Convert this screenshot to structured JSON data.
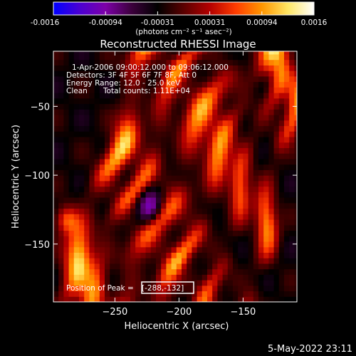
{
  "colorbar": {
    "ticks": [
      "-0.0016",
      "-0.00094",
      "-0.00031",
      "0.00031",
      "0.00094",
      "0.0016"
    ],
    "unit_label": "(photons cm⁻² s⁻¹ asec⁻²)",
    "colors": [
      "#0000ff",
      "#4b00d2",
      "#7d00a8",
      "#3c003c",
      "#000000",
      "#5a0000",
      "#b40000",
      "#ff3c00",
      "#ff9600",
      "#ffe664",
      "#ffffff"
    ]
  },
  "chart_data": {
    "type": "heatmap",
    "title": "Reconstructed RHESSI Image",
    "xlabel": "Heliocentric X (arcsec)",
    "ylabel": "Heliocentric Y (arcsec)",
    "xlim": [
      -298,
      -108
    ],
    "ylim": [
      -192,
      -10
    ],
    "xticks": [
      -250,
      -200,
      -150
    ],
    "yticks": [
      -50,
      -100,
      -150
    ],
    "value_range": [
      -0.0016,
      0.0016
    ],
    "annotations": {
      "time_range": "1-Apr-2006 09:00:12.000 to 09:06:12.000",
      "detectors": "Detectors: 3F 4F 5F 6F 7F 8F, Att 0",
      "energy": "Energy Range: 12.0 - 25.0 keV",
      "method": "Clean",
      "counts": "Total counts: 1.11E+04",
      "peak_label": "Position of Peak = ",
      "peak_value": "[-288,-132]"
    },
    "peak": [
      -288,
      -132
    ]
  },
  "timestamp": "5-May-2022 23:11"
}
